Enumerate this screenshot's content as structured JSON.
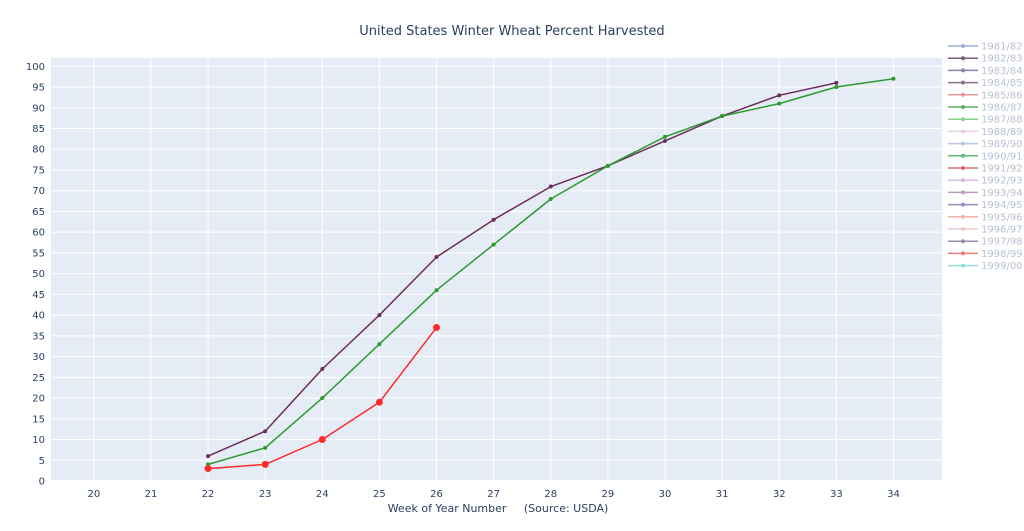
{
  "chart_data": {
    "type": "line",
    "title": "United States Winter Wheat Percent Harvested",
    "xlabel": "Week of Year Number     (Source: USDA)",
    "ylabel": "",
    "xlim": [
      19.25,
      34.85
    ],
    "ylim": [
      0,
      102
    ],
    "x_ticks": [
      20,
      21,
      22,
      23,
      24,
      25,
      26,
      27,
      28,
      29,
      30,
      31,
      32,
      33,
      34
    ],
    "y_ticks": [
      0,
      5,
      10,
      15,
      20,
      25,
      30,
      35,
      40,
      45,
      50,
      55,
      60,
      65,
      70,
      75,
      80,
      85,
      90,
      95,
      100
    ],
    "grid": true,
    "legend_position": "right",
    "colors": {
      "plot_bg": "#e5ecf6",
      "grid": "#ffffff",
      "tick_text": "#2a3f5f",
      "title_text": "#2a3f5f"
    },
    "legend": [
      {
        "name": "1981/82",
        "color": "#9ab0d8"
      },
      {
        "name": "1982/83",
        "color": "#7a5c7a"
      },
      {
        "name": "1983/84",
        "color": "#8f7fa8"
      },
      {
        "name": "1984/85",
        "color": "#8a6f8a"
      },
      {
        "name": "1985/86",
        "color": "#e89a9a"
      },
      {
        "name": "1986/87",
        "color": "#5fae5f"
      },
      {
        "name": "1987/88",
        "color": "#86d48a"
      },
      {
        "name": "1988/89",
        "color": "#e6d2e6"
      },
      {
        "name": "1989/90",
        "color": "#b8c8e0"
      },
      {
        "name": "1990/91",
        "color": "#58c078"
      },
      {
        "name": "1991/92",
        "color": "#d87070"
      },
      {
        "name": "1992/93",
        "color": "#d4c0dc"
      },
      {
        "name": "1993/94",
        "color": "#b89cbc"
      },
      {
        "name": "1994/95",
        "color": "#9090c0"
      },
      {
        "name": "1995/96",
        "color": "#f2b4a4"
      },
      {
        "name": "1996/97",
        "color": "#ecc8c8"
      },
      {
        "name": "1997/98",
        "color": "#9c8cac"
      },
      {
        "name": "1998/99",
        "color": "#e88080"
      },
      {
        "name": "1999/00",
        "color": "#90e0d4"
      }
    ],
    "series": [
      {
        "color": "#6b2d5c",
        "marker": "small",
        "x": [
          22,
          23,
          24,
          25,
          26,
          27,
          28,
          29,
          30,
          31,
          32,
          33
        ],
        "y": [
          6,
          12,
          27,
          40,
          54,
          63,
          71,
          76,
          82,
          88,
          93,
          96
        ]
      },
      {
        "color": "#2e9a2e",
        "marker": "small",
        "x": [
          22,
          23,
          24,
          25,
          26,
          27,
          28,
          29,
          30,
          31,
          32,
          33,
          34
        ],
        "y": [
          4,
          8,
          20,
          33,
          46,
          57,
          68,
          76,
          83,
          88,
          91,
          95,
          97
        ]
      },
      {
        "color": "#ff2a2a",
        "marker": "large",
        "x": [
          22,
          23,
          24,
          25,
          26
        ],
        "y": [
          3,
          4,
          10,
          19,
          37
        ]
      }
    ]
  }
}
